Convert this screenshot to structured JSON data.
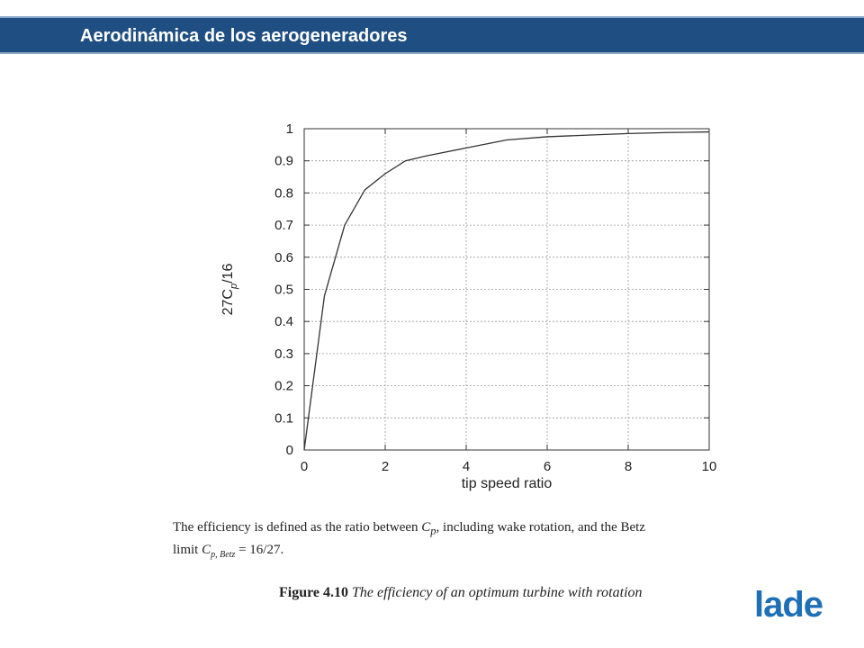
{
  "header": {
    "title": "Aerodinámica de los aerogeneradores"
  },
  "caption": {
    "line1_pre": "The efficiency is defined as the ratio between ",
    "cp": "C",
    "cp_sub": "p",
    "line1_post": ", including wake rotation, and the Betz",
    "line2_pre": "limit ",
    "cp_betz_sub": "p, Betz",
    "line2_post": " = 16/27."
  },
  "figure_caption": {
    "number": "Figure 4.10",
    "text": "The efficiency of an optimum turbine with rotation"
  },
  "logo": {
    "text": "lade",
    "color": "#1e6fb5"
  },
  "colors": {
    "header_bg": "#1f4e82",
    "header_text": "#ffffff",
    "curve": "#333333",
    "grid": "#999999"
  },
  "chart_data": {
    "type": "line",
    "xlabel": "tip speed ratio",
    "ylabel": "27C",
    "ylabel_sub": "p",
    "ylabel_post": "/16",
    "xlim": [
      0,
      10
    ],
    "ylim": [
      0,
      1
    ],
    "xticks": [
      0,
      2,
      4,
      6,
      8,
      10
    ],
    "yticks": [
      0,
      0.1,
      0.2,
      0.3,
      0.4,
      0.5,
      0.6,
      0.7,
      0.8,
      0.9,
      1
    ],
    "ytick_labels": [
      "0",
      "0.1",
      "0.2",
      "0.3",
      "0.4",
      "0.5",
      "0.6",
      "0.7",
      "0.8",
      "0.9",
      "1"
    ],
    "grid": true,
    "series": [
      {
        "x": [
          0,
          0.5,
          1.0,
          1.5,
          2.0,
          2.5,
          3.0,
          4.0,
          5.0,
          6.0,
          7.0,
          8.0,
          9.0,
          10.0
        ],
        "y": [
          0,
          0.48,
          0.7,
          0.81,
          0.86,
          0.9,
          0.915,
          0.94,
          0.965,
          0.975,
          0.98,
          0.985,
          0.988,
          0.99
        ]
      }
    ]
  }
}
